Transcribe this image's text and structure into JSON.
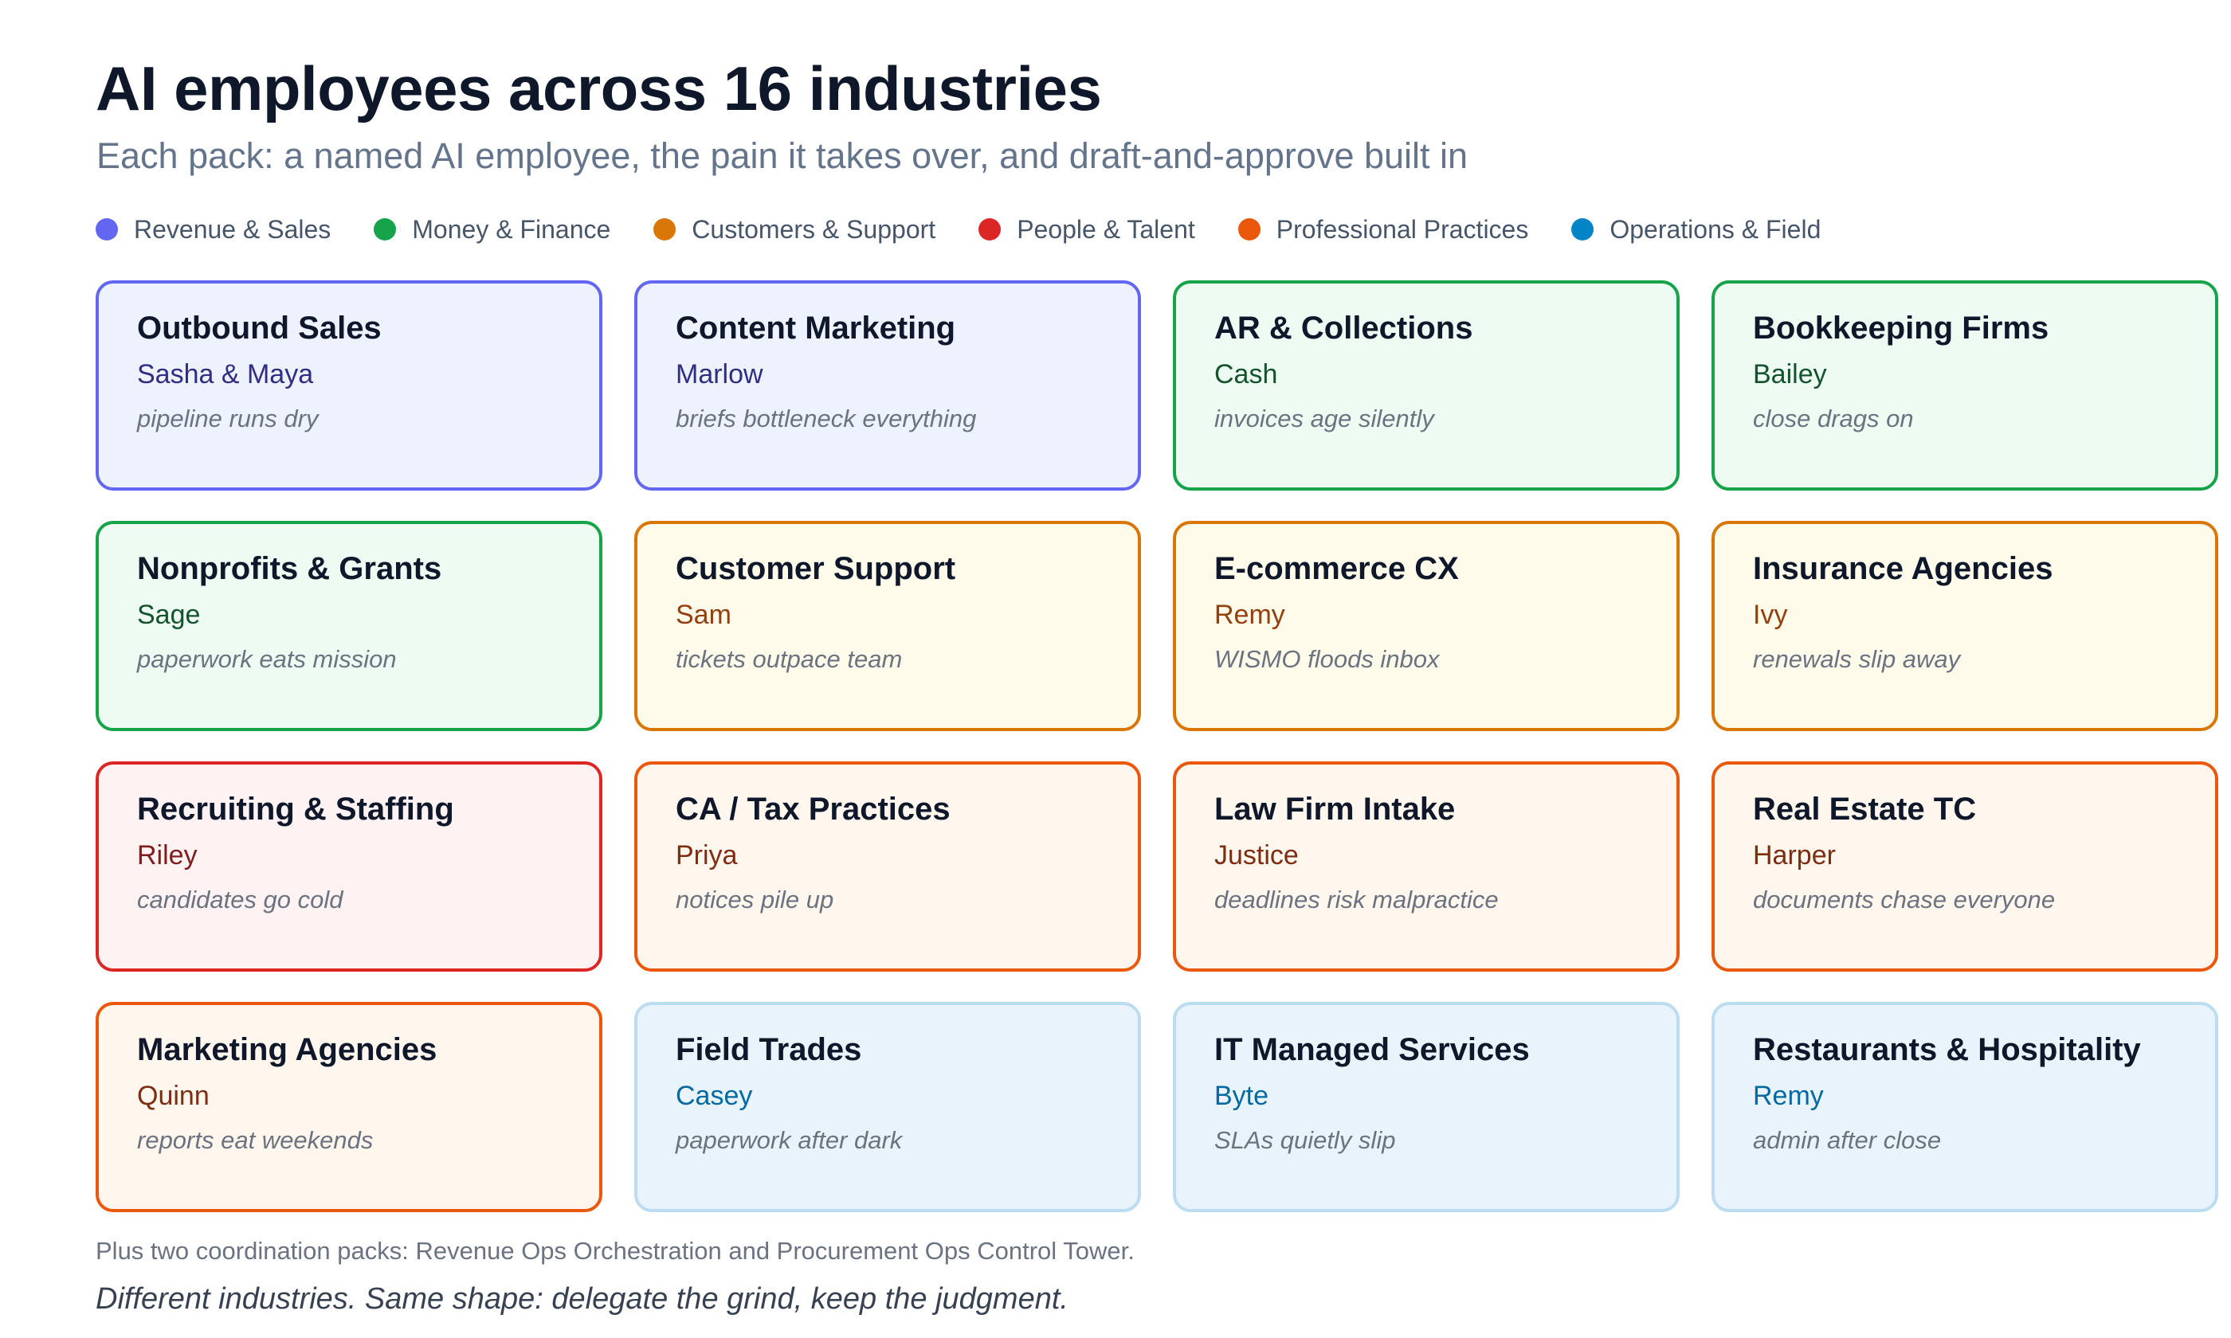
{
  "header": {
    "title": "AI employees across 16 industries",
    "subtitle": "Each pack: a named AI employee, the pain it takes over, and draft-and-approve built in"
  },
  "legend": [
    {
      "label": "Revenue & Sales",
      "color": "#6366f1"
    },
    {
      "label": "Money & Finance",
      "color": "#16a34a"
    },
    {
      "label": "Customers & Support",
      "color": "#d97706"
    },
    {
      "label": "People & Talent",
      "color": "#dc2626"
    },
    {
      "label": "Professional Practices",
      "color": "#ea580c"
    },
    {
      "label": "Operations & Field",
      "color": "#0284c7"
    }
  ],
  "categories": {
    "revenue": {
      "border": "#6366f1",
      "bg": "#eef1fe",
      "name_color": "#312e81"
    },
    "money": {
      "border": "#16a34a",
      "bg": "#edfbf2",
      "name_color": "#14532d"
    },
    "customers": {
      "border": "#d97706",
      "bg": "#fefbea",
      "name_color": "#92400e"
    },
    "people": {
      "border": "#dc2626",
      "bg": "#fef2f2",
      "name_color": "#7f1d1d"
    },
    "practices": {
      "border": "#ea580c",
      "bg": "#fff6ed",
      "name_color": "#7c2d12"
    },
    "operations": {
      "border": "#bcdcf0",
      "bg": "#e8f3fb",
      "name_color": "#0369a1"
    }
  },
  "cards": [
    {
      "title": "Outbound Sales",
      "person": "Sasha & Maya",
      "pain": "pipeline runs dry",
      "category": "revenue"
    },
    {
      "title": "Content Marketing",
      "person": "Marlow",
      "pain": "briefs bottleneck everything",
      "category": "revenue"
    },
    {
      "title": "AR & Collections",
      "person": "Cash",
      "pain": "invoices age silently",
      "category": "money"
    },
    {
      "title": "Bookkeeping Firms",
      "person": "Bailey",
      "pain": "close drags on",
      "category": "money"
    },
    {
      "title": "Nonprofits & Grants",
      "person": "Sage",
      "pain": "paperwork eats mission",
      "category": "money"
    },
    {
      "title": "Customer Support",
      "person": "Sam",
      "pain": "tickets outpace team",
      "category": "customers"
    },
    {
      "title": "E-commerce CX",
      "person": "Remy",
      "pain": "WISMO floods inbox",
      "category": "customers"
    },
    {
      "title": "Insurance Agencies",
      "person": "Ivy",
      "pain": "renewals slip away",
      "category": "customers"
    },
    {
      "title": "Recruiting & Staffing",
      "person": "Riley",
      "pain": "candidates go cold",
      "category": "people"
    },
    {
      "title": "CA / Tax Practices",
      "person": "Priya",
      "pain": "notices pile up",
      "category": "practices"
    },
    {
      "title": "Law Firm Intake",
      "person": "Justice",
      "pain": "deadlines risk malpractice",
      "category": "practices"
    },
    {
      "title": "Real Estate TC",
      "person": "Harper",
      "pain": "documents chase everyone",
      "category": "practices"
    },
    {
      "title": "Marketing Agencies",
      "person": "Quinn",
      "pain": "reports eat weekends",
      "category": "practices"
    },
    {
      "title": "Field Trades",
      "person": "Casey",
      "pain": "paperwork after dark",
      "category": "operations"
    },
    {
      "title": "IT Managed Services",
      "person": "Byte",
      "pain": "SLAs quietly slip",
      "category": "operations"
    },
    {
      "title": "Restaurants & Hospitality",
      "person": "Remy",
      "pain": "admin after close",
      "category": "operations"
    }
  ],
  "footer": {
    "note": "Plus two coordination packs: Revenue Ops Orchestration and Procurement Ops Control Tower.",
    "tagline": "Different industries. Same shape: delegate the grind, keep the judgment."
  }
}
